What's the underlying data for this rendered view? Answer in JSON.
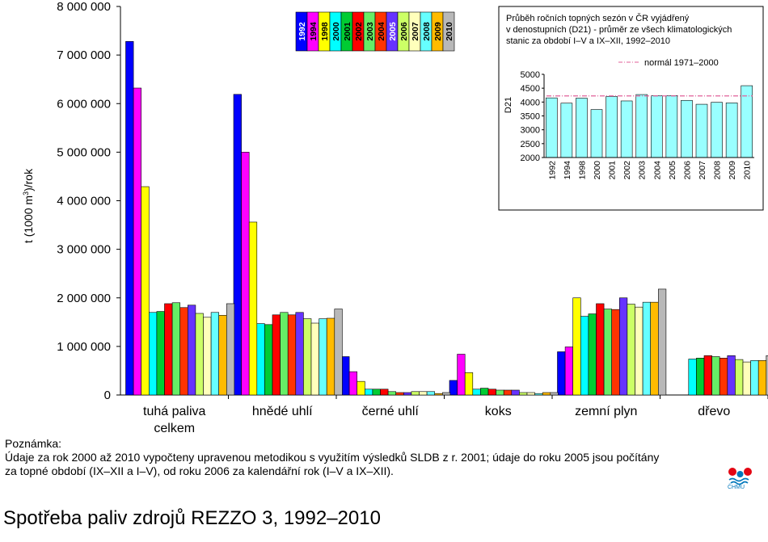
{
  "chart_data": {
    "type": "bar",
    "title": "",
    "xlabel": "",
    "ylabel": "t (1000 m3)/rok",
    "ylabel_parts": [
      "t (1000 m",
      "3",
      ")/rok"
    ],
    "ylim": [
      0,
      8000000
    ],
    "yticks": [
      "0",
      "1 000 000",
      "2 000 000",
      "3 000 000",
      "4 000 000",
      "5 000 000",
      "6 000 000",
      "7 000 000",
      "8 000 000"
    ],
    "grid": false,
    "legend_position": "top-center",
    "categories": [
      "tuhá paliva celkem",
      "hnědé uhlí",
      "černé uhlí",
      "koks",
      "zemní plyn",
      "dřevo"
    ],
    "category_label_lines": [
      [
        "tuhá paliva",
        "celkem"
      ],
      [
        "hnědé uhlí"
      ],
      [
        "černé uhlí"
      ],
      [
        "koks"
      ],
      [
        "zemní plyn"
      ],
      [
        "dřevo"
      ]
    ],
    "series": [
      {
        "name": "1992",
        "color": "#0000ff",
        "values": [
          7280000,
          6190000,
          790000,
          300000,
          890000,
          null
        ]
      },
      {
        "name": "1994",
        "color": "#ff00ff",
        "values": [
          6320000,
          5000000,
          480000,
          840000,
          990000,
          null
        ]
      },
      {
        "name": "1998",
        "color": "#ffff00",
        "values": [
          4290000,
          3560000,
          280000,
          460000,
          2000000,
          null
        ]
      },
      {
        "name": "2000",
        "color": "#00ffff",
        "values": [
          1700000,
          1470000,
          120000,
          120000,
          1620000,
          740000
        ]
      },
      {
        "name": "2001",
        "color": "#00cc33",
        "values": [
          1720000,
          1450000,
          120000,
          140000,
          1670000,
          760000
        ]
      },
      {
        "name": "2002",
        "color": "#ff0000",
        "values": [
          1880000,
          1650000,
          120000,
          120000,
          1880000,
          810000
        ]
      },
      {
        "name": "2003",
        "color": "#66ee66",
        "values": [
          1900000,
          1700000,
          70000,
          100000,
          1770000,
          790000
        ]
      },
      {
        "name": "2004",
        "color": "#ff3300",
        "values": [
          1800000,
          1650000,
          50000,
          100000,
          1760000,
          760000
        ]
      },
      {
        "name": "2005",
        "color": "#6633ff",
        "values": [
          1850000,
          1700000,
          50000,
          100000,
          2000000,
          810000
        ]
      },
      {
        "name": "2006",
        "color": "#ccff66",
        "values": [
          1680000,
          1570000,
          70000,
          50000,
          1870000,
          730000
        ]
      },
      {
        "name": "2007",
        "color": "#ffffbb",
        "values": [
          1600000,
          1480000,
          70000,
          50000,
          1810000,
          680000
        ]
      },
      {
        "name": "2008",
        "color": "#66ffff",
        "values": [
          1700000,
          1570000,
          70000,
          30000,
          1910000,
          710000
        ]
      },
      {
        "name": "2009",
        "color": "#ffbb00",
        "values": [
          1640000,
          1580000,
          30000,
          50000,
          1910000,
          710000
        ]
      },
      {
        "name": "2010",
        "color": "#b8b8b8",
        "values": [
          1880000,
          1770000,
          50000,
          50000,
          2180000,
          810000
        ]
      }
    ]
  },
  "inset": {
    "title_lines": [
      "Průběh ročních topných sezón v ČR vyjádřený",
      "v denostupních (D21) - průměr ze všech klimatologických",
      "stanic za období I–V a IX–XII, 1992–2010"
    ],
    "ylabel": "D21",
    "yticks": [
      "2000",
      "2500",
      "3000",
      "3500",
      "4000",
      "4500",
      "5000"
    ],
    "legend_label": "normál 1971–2000",
    "chart_data": {
      "type": "bar",
      "categories": [
        "1992",
        "1994",
        "1998",
        "2000",
        "2001",
        "2002",
        "2003",
        "2004",
        "2005",
        "2006",
        "2007",
        "2008",
        "2009",
        "2010"
      ],
      "values": [
        4150,
        3960,
        4140,
        3730,
        4200,
        4040,
        4270,
        4230,
        4230,
        4060,
        3920,
        3990,
        3970,
        4590
      ],
      "normal": 4220,
      "ylim": [
        2000,
        5000
      ],
      "bar_color": "#99ffff",
      "normal_color": "#e0609a"
    }
  },
  "note": {
    "title": "Poznámka:",
    "line1": "Údaje za rok 2000 až 2010 vypočteny upravenou metodikou s využitím výsledků SLDB z r. 2001; údaje do roku 2005 jsou počítány",
    "line2": "za topné období (IX–XII a I–V), od roku 2006 za kalendářní rok (I–V a IX–XII)."
  },
  "caption": "Spotřeba paliv zdrojů REZZO 3, 1992–2010",
  "logo": {
    "text": "ČHMÚ",
    "colors": [
      "#e30613",
      "#0077bb"
    ]
  }
}
